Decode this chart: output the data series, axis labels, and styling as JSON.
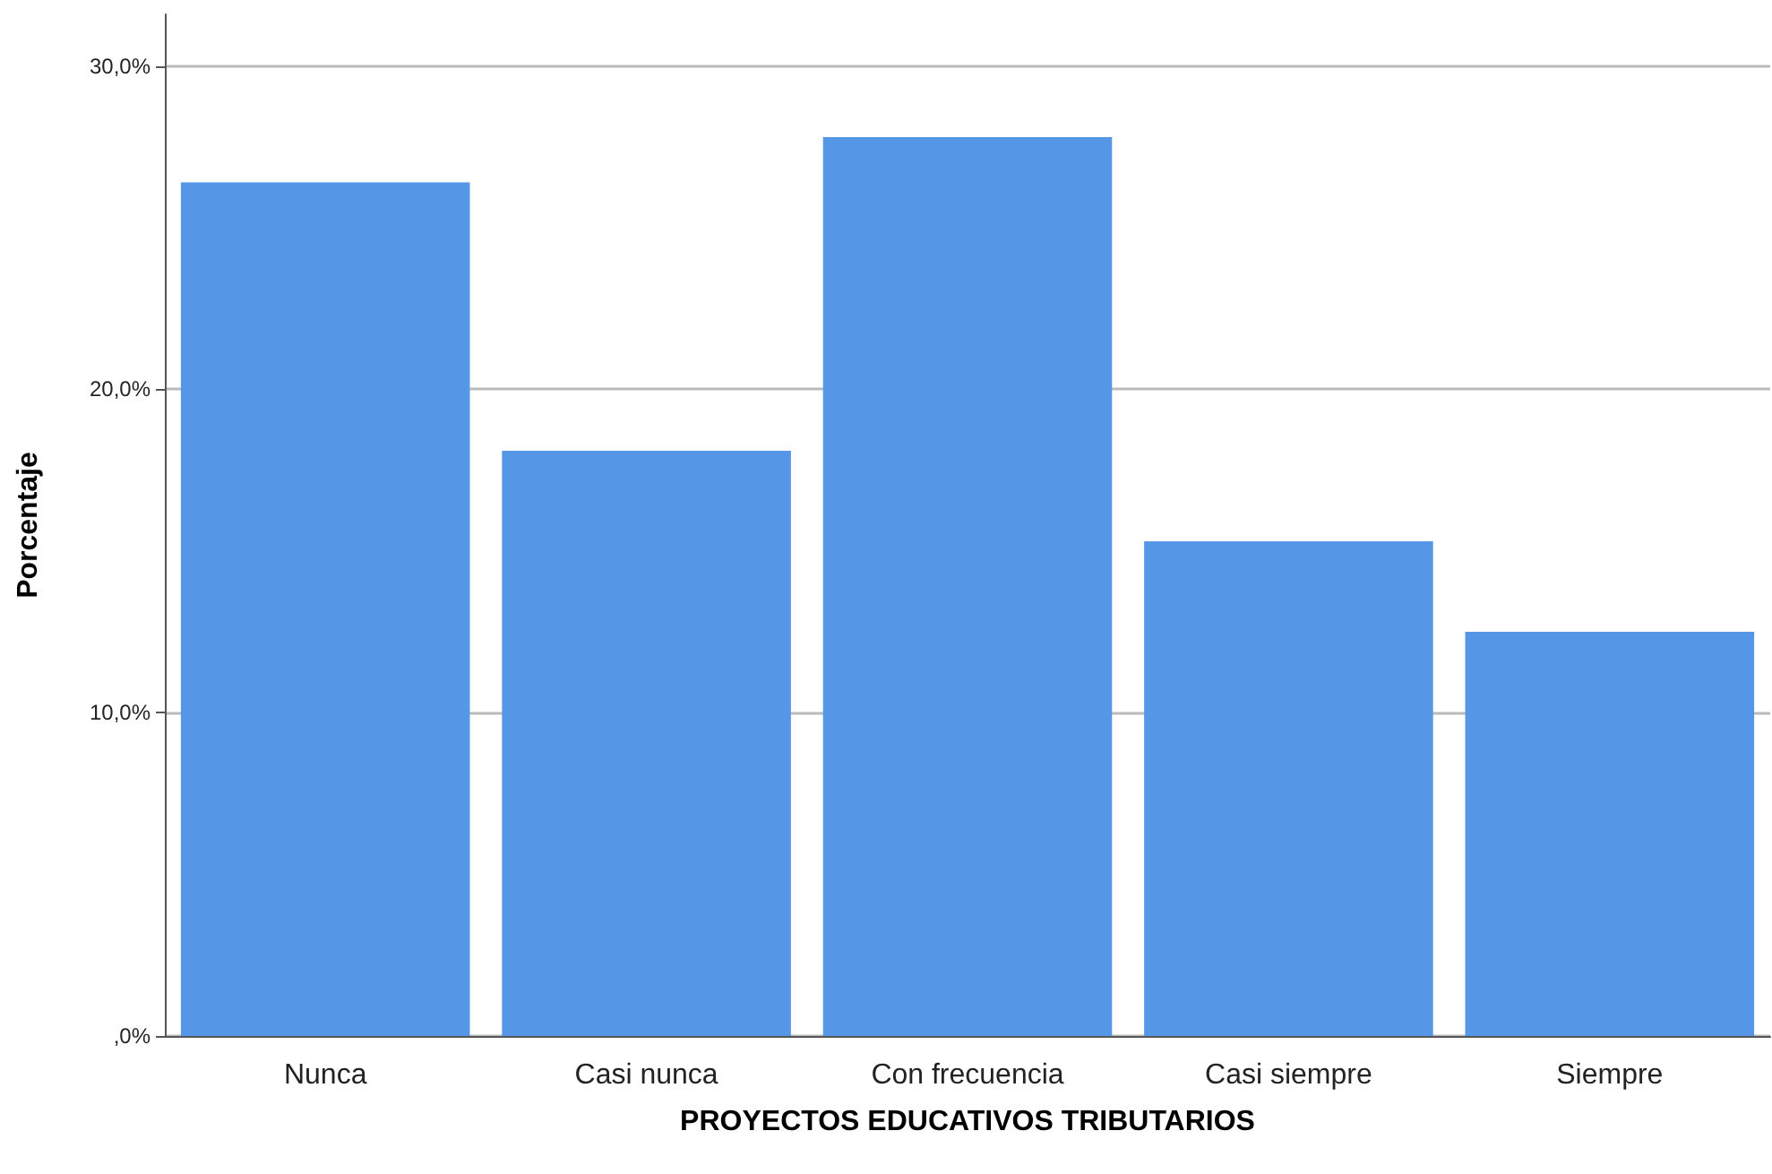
{
  "chart_data": {
    "type": "bar",
    "xlabel": "PROYECTOS EDUCATIVOS TRIBUTARIOS",
    "ylabel": "Porcentaje",
    "categories": [
      "Nunca",
      "Casi nunca",
      "Con frecuencia",
      "Casi siempre",
      "Siempre"
    ],
    "values": [
      26.4,
      18.1,
      27.8,
      15.3,
      12.5
    ],
    "color": "#5596e6",
    "ylim": [
      0,
      31.6
    ],
    "yticks": [
      {
        "value": 0,
        "label": ",0%"
      },
      {
        "value": 10,
        "label": "10,0%"
      },
      {
        "value": 20,
        "label": "20,0%"
      },
      {
        "value": 30,
        "label": "30,0%"
      }
    ],
    "grid": "y"
  }
}
